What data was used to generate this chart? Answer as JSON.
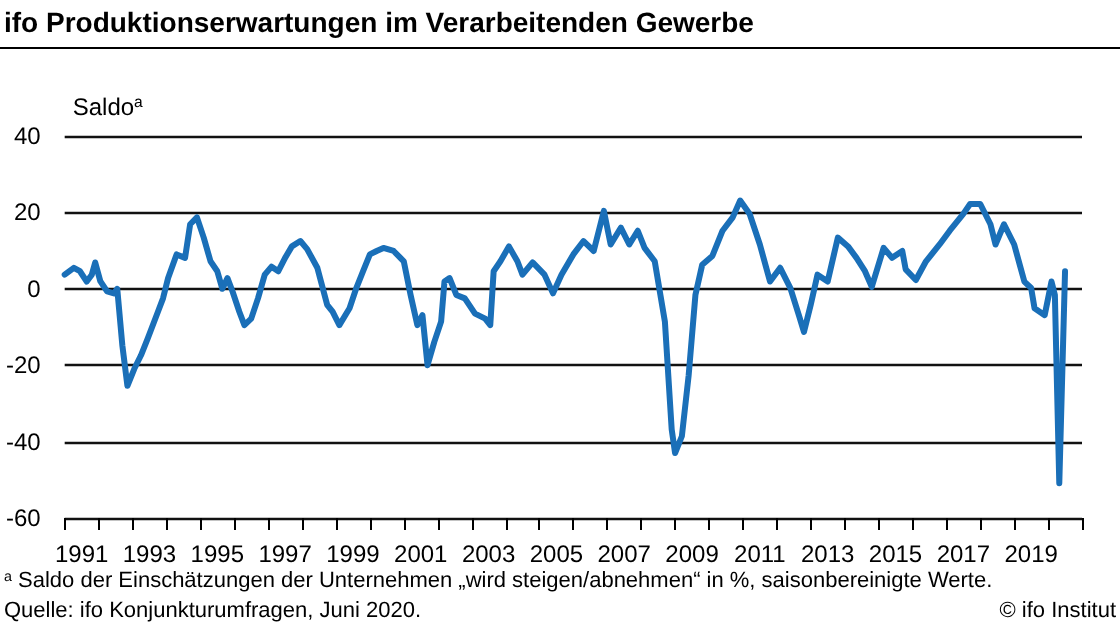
{
  "chart_data": {
    "type": "line",
    "title": "ifo Produktionserwartungen im Verarbeitenden Gewerbe",
    "ylabel": "Saldo$^{a}$",
    "annotations": [
      "$^{a}$ Saldo der Einschätzungen der Unternehmen „wird steigen/abnehmen“ in %, saisonbereinigte Werte.",
      "Quelle: ifo Konjunkturumfragen, Juni 2020.",
      "© ifo Institut"
    ],
    "x": [
      1991.0,
      1991.27,
      1991.45,
      1991.65,
      1991.8,
      1991.9,
      1992.05,
      1992.25,
      1992.45,
      1992.55,
      1992.7,
      1992.85,
      1993.05,
      1993.25,
      1993.45,
      1993.75,
      1993.9,
      1994.05,
      1994.3,
      1994.55,
      1994.7,
      1994.9,
      1995.1,
      1995.3,
      1995.5,
      1995.65,
      1995.8,
      1995.95,
      1996.15,
      1996.3,
      1996.5,
      1996.7,
      1996.9,
      1997.1,
      1997.3,
      1997.5,
      1997.7,
      1997.95,
      1998.15,
      1998.45,
      1998.74,
      1998.9,
      1999.1,
      1999.4,
      1999.6,
      1999.8,
      2000.0,
      2000.2,
      2000.4,
      2000.7,
      2001.0,
      2001.2,
      2001.4,
      2001.55,
      2001.7,
      2001.9,
      2002.1,
      2002.2,
      2002.35,
      2002.55,
      2002.8,
      2003.1,
      2003.4,
      2003.55,
      2003.65,
      2003.85,
      2004.1,
      2004.35,
      2004.5,
      2004.8,
      2005.15,
      2005.4,
      2005.65,
      2006.0,
      2006.3,
      2006.6,
      2006.9,
      2007.1,
      2007.4,
      2007.65,
      2007.9,
      2008.1,
      2008.4,
      2008.7,
      2008.9,
      2009.0,
      2009.2,
      2009.4,
      2009.6,
      2009.8,
      2010.1,
      2010.4,
      2010.7,
      2010.92,
      2011.2,
      2011.5,
      2011.8,
      2012.1,
      2012.4,
      2012.65,
      2012.8,
      2013.0,
      2013.2,
      2013.5,
      2013.8,
      2014.1,
      2014.35,
      2014.6,
      2014.8,
      2015.15,
      2015.4,
      2015.7,
      2015.8,
      2016.1,
      2016.4,
      2016.8,
      2017.1,
      2017.5,
      2017.7,
      2018.0,
      2018.3,
      2018.45,
      2018.7,
      2019.0,
      2019.3,
      2019.5,
      2019.6,
      2019.9,
      2020.1,
      2020.2,
      2020.33,
      2020.5
    ],
    "series": [
      {
        "color": "#1a6fb8",
        "values": [
          3.7,
          5.5,
          4.6,
          1.9,
          3.7,
          6.9,
          2,
          -0.7,
          -1.2,
          0,
          -14.8,
          -25.4,
          -21,
          -17.4,
          -13,
          -6,
          -2.5,
          2.8,
          9,
          8.1,
          16.9,
          18.7,
          13.4,
          7.2,
          4.6,
          0,
          2.8,
          -0.7,
          -6,
          -9.5,
          -7.8,
          -2.5,
          3.7,
          5.8,
          4.6,
          8.1,
          11.1,
          12.5,
          10.4,
          5.5,
          -4.2,
          -6,
          -9.5,
          -5.1,
          0.2,
          4.6,
          9,
          9.9,
          10.7,
          9.9,
          7.2,
          -1.6,
          -9.5,
          -6.9,
          -20,
          -13.9,
          -8.6,
          1.9,
          2.8,
          -1.6,
          -2.5,
          -6.5,
          -7.8,
          -9.5,
          4.6,
          7.2,
          11.1,
          7.2,
          3.7,
          6.9,
          3.7,
          -1.2,
          3.7,
          9,
          12.5,
          9.9,
          20.4,
          11.6,
          16,
          11.6,
          15.2,
          10.7,
          7.2,
          -8.6,
          -36.8,
          -43,
          -38.6,
          -22.7,
          -1.6,
          6.3,
          8.6,
          15.2,
          18.7,
          23.1,
          19.6,
          11.6,
          1.9,
          5.5,
          0.2,
          -6.9,
          -11.3,
          -4.2,
          3.7,
          1.9,
          13.4,
          11.1,
          8.1,
          4.6,
          0.5,
          10.7,
          8.1,
          9.9,
          5.1,
          2.3,
          7.2,
          11.6,
          15.2,
          19.6,
          22.2,
          22.2,
          16.9,
          11.6,
          16.9,
          11.6,
          1.9,
          0.2,
          -5.1,
          -6.9,
          1.9,
          -1.6,
          -50.9,
          4.6
        ]
      }
    ],
    "xlim": [
      1991,
      2021
    ],
    "xticks": [
      {
        "value": 1991.5,
        "label": "1991"
      },
      {
        "value": 1993.5,
        "label": "1993"
      },
      {
        "value": 1995.5,
        "label": "1995"
      },
      {
        "value": 1997.5,
        "label": "1997"
      },
      {
        "value": 1999.5,
        "label": "1999"
      },
      {
        "value": 2001.5,
        "label": "2001"
      },
      {
        "value": 2003.5,
        "label": "2003"
      },
      {
        "value": 2005.5,
        "label": "2005"
      },
      {
        "value": 2007.5,
        "label": "2007"
      },
      {
        "value": 2009.5,
        "label": "2009"
      },
      {
        "value": 2011.5,
        "label": "2011"
      },
      {
        "value": 2013.5,
        "label": "2013"
      },
      {
        "value": 2015.5,
        "label": "2015"
      },
      {
        "value": 2017.5,
        "label": "2017"
      },
      {
        "value": 2019.5,
        "label": "2019"
      },
      {
        "value": 1991,
        "label": null
      },
      {
        "value": 1992,
        "label": null
      },
      {
        "value": 1993,
        "label": null
      },
      {
        "value": 1994,
        "label": null
      },
      {
        "value": 1995,
        "label": null
      },
      {
        "value": 1996,
        "label": null
      },
      {
        "value": 1997,
        "label": null
      },
      {
        "value": 1998,
        "label": null
      },
      {
        "value": 1999,
        "label": null
      },
      {
        "value": 2000,
        "label": null
      },
      {
        "value": 2001,
        "label": null
      },
      {
        "value": 2002,
        "label": null
      },
      {
        "value": 2003,
        "label": null
      },
      {
        "value": 2004,
        "label": null
      },
      {
        "value": 2005,
        "label": null
      },
      {
        "value": 2006,
        "label": null
      },
      {
        "value": 2007,
        "label": null
      },
      {
        "value": 2008,
        "label": null
      },
      {
        "value": 2009,
        "label": null
      },
      {
        "value": 2010,
        "label": null
      },
      {
        "value": 2011,
        "label": null
      },
      {
        "value": 2012,
        "label": null
      },
      {
        "value": 2013,
        "label": null
      },
      {
        "value": 2014,
        "label": null
      },
      {
        "value": 2015,
        "label": null
      },
      {
        "value": 2016,
        "label": null
      },
      {
        "value": 2017,
        "label": null
      },
      {
        "value": 2018,
        "label": null
      },
      {
        "value": 2019,
        "label": null
      },
      {
        "value": 2020,
        "label": null
      },
      {
        "value": 2021,
        "label": null
      }
    ],
    "ylim": [
      -60,
      40
    ],
    "yticks": [
      -60,
      -40,
      -20,
      0,
      20,
      40
    ],
    "grid": "y",
    "marker": "none",
    "line_style": "solid"
  }
}
